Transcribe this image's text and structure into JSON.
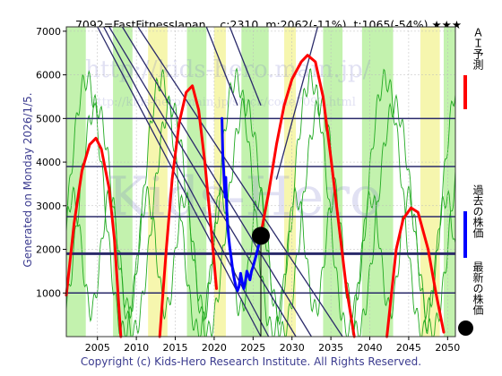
{
  "header": {
    "code_name": "7092=FastFitnessJapan",
    "current": "c:2310",
    "min": "m:2062(-11%)",
    "target": "t:1065(-54%)",
    "stars": "★★★"
  },
  "side_label": "Generated on Monday 2026/1/5.",
  "footer": "Copyright (c) Kids-Hero Research Institute. All Rights Reserved.",
  "watermark": {
    "line1": "http://kids-hero.main.jp/",
    "line2": "http://kids-hero.main.jp/stock/code7092.html",
    "line3": "Kids-Hero"
  },
  "legend": [
    {
      "label": "ＡＩ予測",
      "color": "#ff0000",
      "kind": "line"
    },
    {
      "label": "過去の株価",
      "color": "#0000ff",
      "kind": "line"
    },
    {
      "label": "最新の株価",
      "color": "#000000",
      "kind": "dot"
    }
  ],
  "colors": {
    "ai_forecast": "#ff0000",
    "past_price": "#0000ff",
    "latest": "#000000",
    "band_green": "#b8f0a0",
    "band_yellow": "#f4f4a0",
    "cycle_lines": "#22aa22",
    "trend_lines": "#2a2a6a"
  },
  "chart_data": {
    "type": "line",
    "xlim": [
      2001,
      2051
    ],
    "ylim": [
      0,
      7100
    ],
    "x_ticks": [
      2005,
      2010,
      2015,
      2020,
      2025,
      2030,
      2035,
      2040,
      2045,
      2050
    ],
    "y_ticks": [
      1000,
      2000,
      3000,
      4000,
      5000,
      6000,
      7000
    ],
    "grid": true,
    "legend_position": "right",
    "horizontal_levels": [
      1000,
      1900,
      2750,
      3900,
      5000
    ],
    "latest_point": {
      "x": 2026.0,
      "y": 2310
    },
    "latest_marker_line": {
      "x": 2026.0,
      "y_from": 0,
      "y_to": 2310
    },
    "trend_lines": [
      {
        "points": [
          [
            2005,
            7100
          ],
          [
            2026,
            0
          ]
        ]
      },
      {
        "points": [
          [
            2005.8,
            7100
          ],
          [
            2027,
            0
          ]
        ]
      },
      {
        "points": [
          [
            2006.5,
            7100
          ],
          [
            2030.5,
            0
          ]
        ]
      },
      {
        "points": [
          [
            2008.2,
            7100
          ],
          [
            2032.5,
            0
          ]
        ]
      },
      {
        "points": [
          [
            2010.2,
            7100
          ],
          [
            2036.5,
            0
          ]
        ]
      },
      {
        "points": [
          [
            2022,
            7100
          ],
          [
            2026,
            5300
          ]
        ]
      },
      {
        "points": [
          [
            2019,
            7100
          ],
          [
            2023,
            5300
          ]
        ]
      },
      {
        "points": [
          [
            2033.3,
            7100
          ],
          [
            2028,
            3600
          ]
        ]
      }
    ],
    "bands": [
      {
        "x0": 2001,
        "x1": 2003.5,
        "kind": "green"
      },
      {
        "x0": 2007,
        "x1": 2009.5,
        "kind": "green"
      },
      {
        "x0": 2011.5,
        "x1": 2014,
        "kind": "yellow"
      },
      {
        "x0": 2016.5,
        "x1": 2019,
        "kind": "green"
      },
      {
        "x0": 2020,
        "x1": 2021.5,
        "kind": "yellow"
      },
      {
        "x0": 2023.5,
        "x1": 2027,
        "kind": "green"
      },
      {
        "x0": 2029,
        "x1": 2030.5,
        "kind": "yellow"
      },
      {
        "x0": 2034,
        "x1": 2036.5,
        "kind": "green"
      },
      {
        "x0": 2039,
        "x1": 2043,
        "kind": "green"
      },
      {
        "x0": 2046.5,
        "x1": 2049,
        "kind": "yellow"
      },
      {
        "x0": 2049.5,
        "x1": 2051,
        "kind": "green"
      }
    ],
    "series": [
      {
        "name": "ＡＩ予測",
        "color": "#ff0000",
        "segments": [
          [
            [
              2001,
              950
            ],
            [
              2002,
              2600
            ],
            [
              2003,
              3800
            ],
            [
              2004,
              4400
            ],
            [
              2004.8,
              4550
            ],
            [
              2005.5,
              4300
            ],
            [
              2006.5,
              3400
            ],
            [
              2007.2,
              2200
            ],
            [
              2008.0,
              0
            ]
          ],
          [
            [
              2013.0,
              0
            ],
            [
              2013.8,
              1900
            ],
            [
              2014.6,
              3600
            ],
            [
              2015.5,
              4900
            ],
            [
              2016.4,
              5600
            ],
            [
              2017.2,
              5750
            ],
            [
              2018.0,
              5200
            ],
            [
              2018.8,
              4000
            ],
            [
              2019.6,
              2500
            ],
            [
              2020.3,
              1100
            ]
          ],
          [
            [
              2026.0,
              2350
            ],
            [
              2027.0,
              3300
            ],
            [
              2028.0,
              4400
            ],
            [
              2029.0,
              5300
            ],
            [
              2030.0,
              5900
            ],
            [
              2031.2,
              6300
            ],
            [
              2032.0,
              6450
            ],
            [
              2033.0,
              6300
            ],
            [
              2034.0,
              5500
            ],
            [
              2035.0,
              4100
            ],
            [
              2036.0,
              2600
            ],
            [
              2037.0,
              1100
            ],
            [
              2038.0,
              0
            ]
          ],
          [
            [
              2042.2,
              0
            ],
            [
              2042.8,
              1000
            ],
            [
              2043.4,
              2000
            ],
            [
              2044.3,
              2700
            ],
            [
              2045.3,
              2950
            ],
            [
              2046.2,
              2850
            ],
            [
              2047.5,
              2000
            ],
            [
              2048.5,
              1000
            ],
            [
              2049.5,
              100
            ]
          ]
        ]
      },
      {
        "name": "過去の株価",
        "color": "#0000ff",
        "segments": [
          [
            [
              2021.0,
              5000
            ],
            [
              2021.1,
              4200
            ],
            [
              2021.2,
              3900
            ],
            [
              2021.3,
              3500
            ],
            [
              2021.4,
              3200
            ],
            [
              2021.5,
              3650
            ],
            [
              2021.6,
              3000
            ],
            [
              2021.7,
              2600
            ],
            [
              2021.85,
              2300
            ],
            [
              2022.0,
              2050
            ],
            [
              2022.2,
              1800
            ],
            [
              2022.4,
              1500
            ],
            [
              2022.6,
              1300
            ],
            [
              2022.8,
              1150
            ],
            [
              2023.0,
              1050
            ],
            [
              2023.2,
              1150
            ],
            [
              2023.4,
              1450
            ],
            [
              2023.6,
              1250
            ],
            [
              2023.8,
              1100
            ],
            [
              2024.0,
              1250
            ],
            [
              2024.2,
              1500
            ],
            [
              2024.4,
              1400
            ],
            [
              2024.6,
              1300
            ],
            [
              2024.8,
              1500
            ],
            [
              2025.0,
              1600
            ],
            [
              2025.3,
              1800
            ],
            [
              2025.6,
              2000
            ],
            [
              2026.0,
              2310
            ]
          ]
        ]
      }
    ]
  }
}
